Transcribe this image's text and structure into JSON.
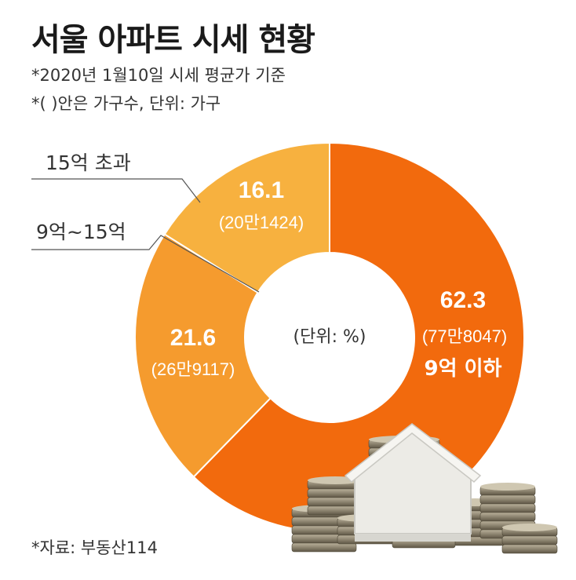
{
  "chart_data": {
    "type": "pie",
    "title": "서울 아파트 시세 현황",
    "notes": [
      "*2020년 1월10일 시세 평균가 기준",
      "*(  )안은 가구수, 단위: 가구"
    ],
    "center_label": "(단위: %)",
    "source": "*자료: 부동산114",
    "slices": [
      {
        "label": "9억 이하",
        "value": 62.3,
        "value_text": "62.3",
        "count_text": "(77만8047)",
        "color": "#f26a0d"
      },
      {
        "label": "9억~15억",
        "value": 21.6,
        "value_text": "21.6",
        "count_text": "(26만9117)",
        "color": "#f59b2e"
      },
      {
        "label": "15억 초과",
        "value": 16.1,
        "value_text": "16.1",
        "count_text": "(20만1424)",
        "color": "#f7b13f"
      }
    ]
  }
}
